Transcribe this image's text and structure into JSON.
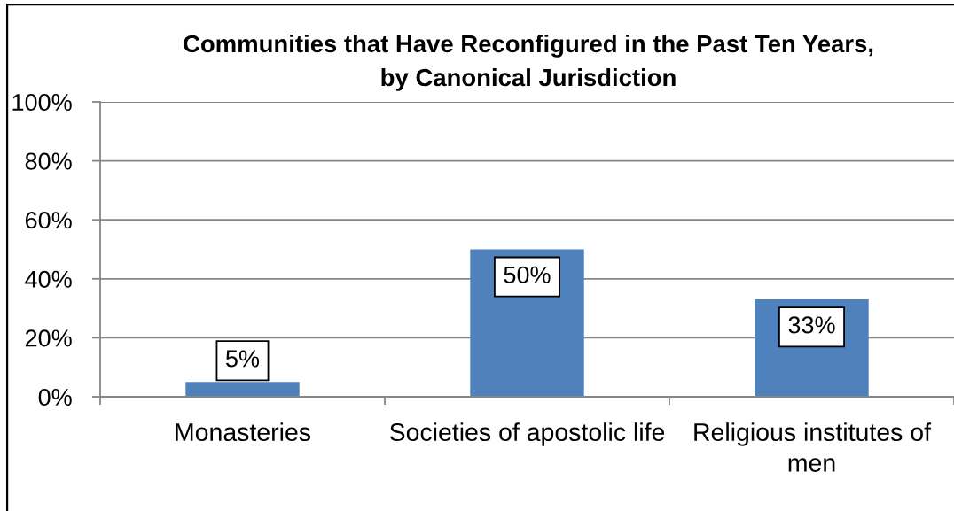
{
  "chart_data": {
    "type": "bar",
    "title": "Communities that Have Reconfigured in the Past Ten Years,\nby Canonical Jurisdiction",
    "categories": [
      "Monasteries",
      "Societies of apostolic life",
      "Religious institutes of men"
    ],
    "values": [
      5,
      50,
      33
    ],
    "color": "#4f81bd",
    "value_labels": [
      "5%",
      "50%",
      "33%"
    ],
    "ylim": [
      0,
      100
    ],
    "yticks": [
      {
        "value": 0,
        "label": "0%"
      },
      {
        "value": 20,
        "label": "20%"
      },
      {
        "value": 40,
        "label": "40%"
      },
      {
        "value": 60,
        "label": "60%"
      },
      {
        "value": 80,
        "label": "80%"
      },
      {
        "value": 100,
        "label": "100%"
      }
    ],
    "grid": "y"
  }
}
